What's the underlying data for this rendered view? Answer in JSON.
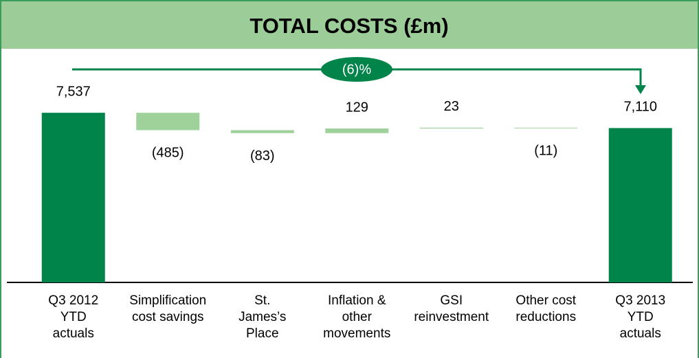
{
  "chart_data": {
    "type": "waterfall",
    "title": "TOTAL COSTS (£m)",
    "categories": [
      "Q3  2012\nYTD\nactuals",
      "Simplification\ncost savings",
      "St.\nJames’s\nPlace",
      "Inflation &\nother\nmovements",
      "GSI\nreinvestment",
      "Other cost\nreductions",
      "Q3 2013\nYTD\nactuals"
    ],
    "values": [
      7537,
      -485,
      -83,
      129,
      23,
      -11,
      7110
    ],
    "value_labels": [
      "7,537",
      "(485)",
      "(83)",
      "129",
      "23",
      "(11)",
      "7,110"
    ],
    "measure": [
      "total",
      "relative",
      "relative",
      "relative",
      "relative",
      "relative",
      "total"
    ],
    "total_color": "#00844a",
    "delta_color": "#9fd19b",
    "annotation": "(6)%",
    "ylim": [
      2800,
      8000
    ]
  }
}
